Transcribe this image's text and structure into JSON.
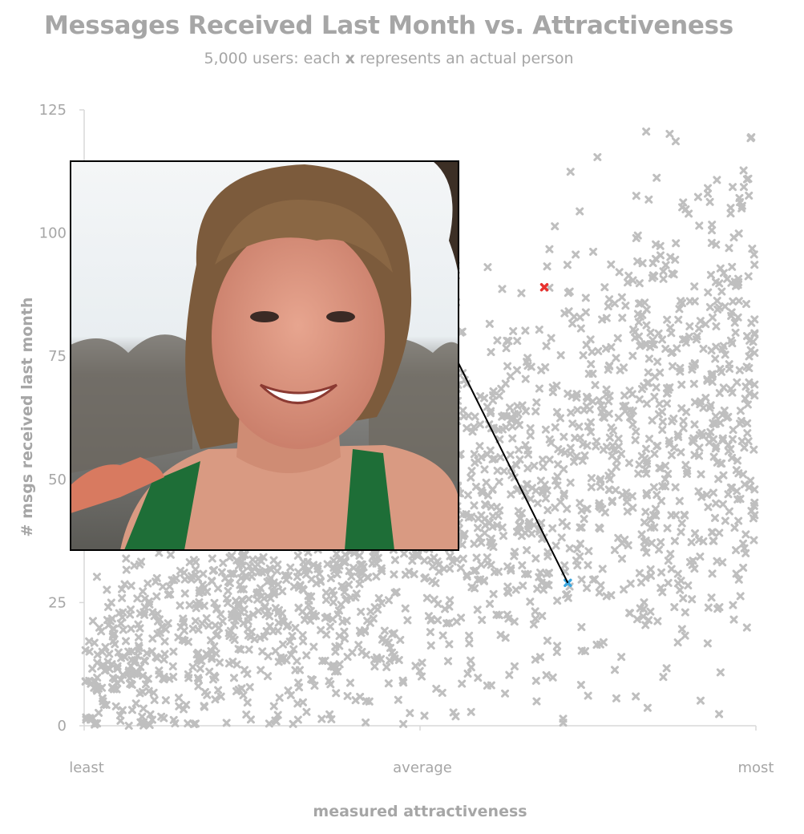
{
  "chart_data": {
    "type": "scatter",
    "title": "Messages Received Last Month vs. Attractiveness",
    "subtitle_parts": [
      "5,000 users: each",
      "x",
      "represents  an actual person"
    ],
    "xlabel": "measured attractiveness",
    "ylabel": "# msgs received last month",
    "x_tick_labels": [
      "least",
      "average",
      "most"
    ],
    "y_ticks": [
      0,
      25,
      50,
      75,
      100,
      125
    ],
    "xlim": [
      0,
      1
    ],
    "ylim": [
      0,
      125
    ],
    "marker": "x",
    "series": [
      {
        "color": "#bfbfbf",
        "points": "gray cloud of ~2,000 x markers: density highest at low attractiveness and 0–40 messages, spreading upward to ~120 messages toward the most attractive end"
      }
    ],
    "highlighted_points": [
      {
        "x": 0.685,
        "y": 89,
        "color": "#e8312e"
      },
      {
        "x": 0.72,
        "y": 29,
        "color": "#3aa6df"
      }
    ],
    "inset_photo": {
      "subject": "smiling young woman with light brown hair in a green athletic top",
      "links_to_point": 1
    },
    "grid": false
  }
}
